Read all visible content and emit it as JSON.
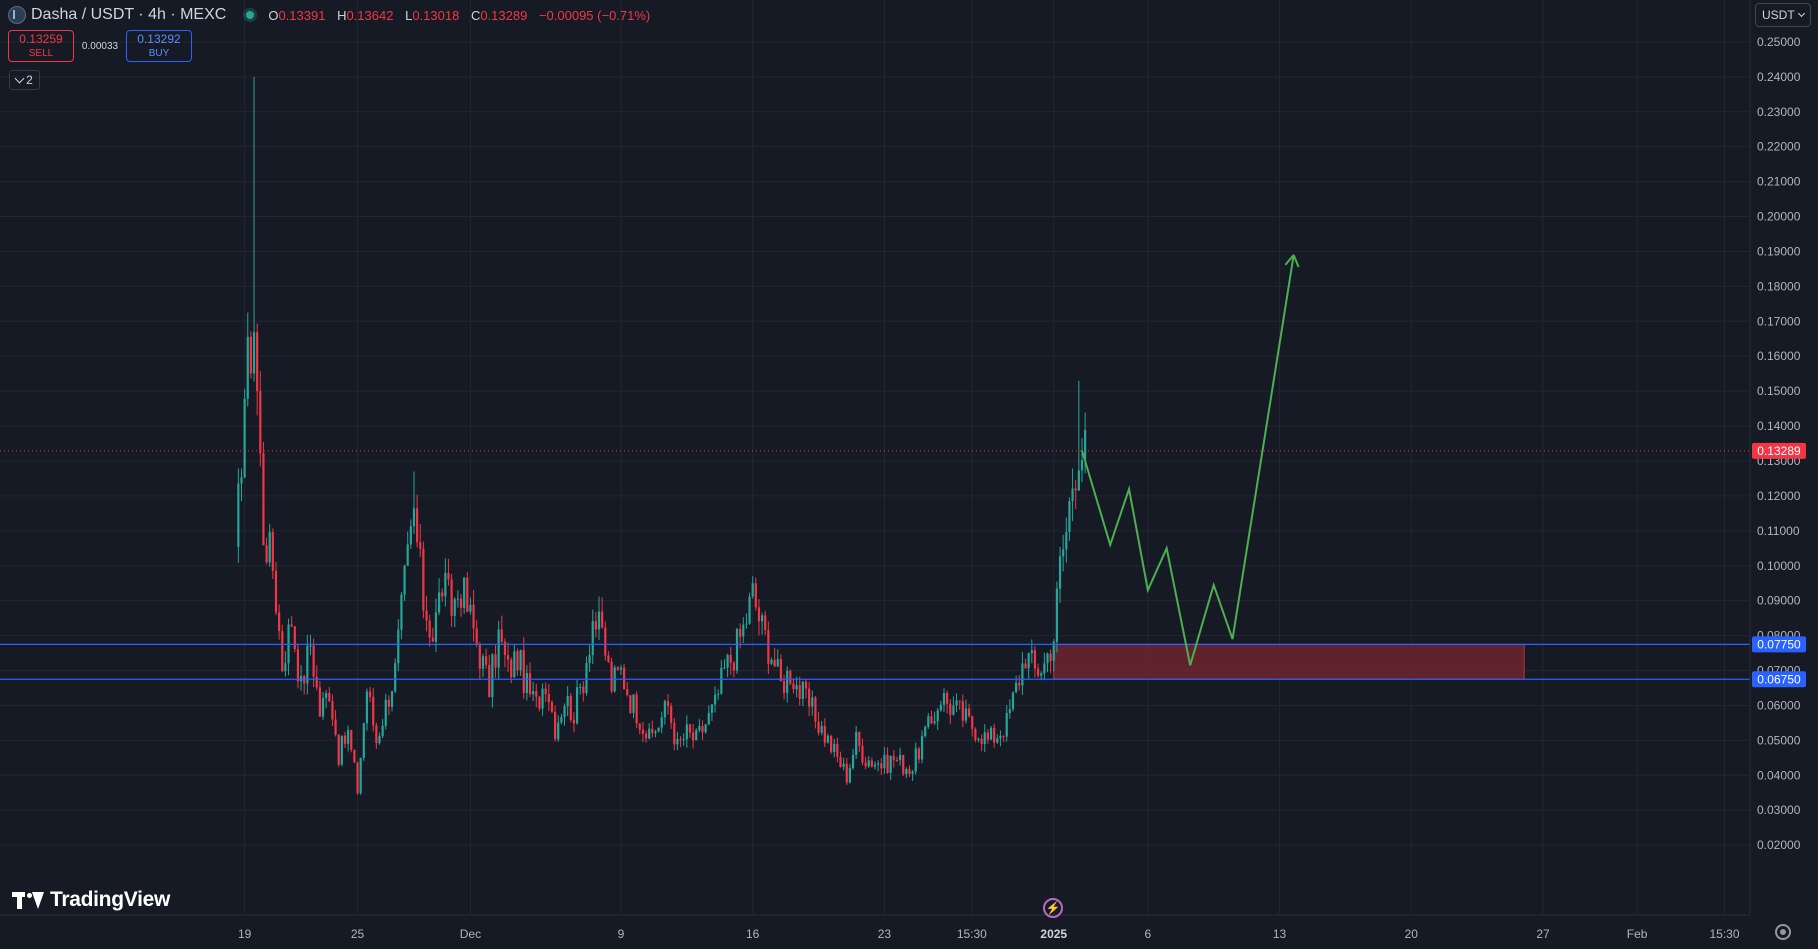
{
  "header": {
    "title": "Dasha / USDT · 4h · MEXC",
    "ohlc": [
      {
        "k": "O",
        "v": "0.13391"
      },
      {
        "k": "H",
        "v": "0.13642"
      },
      {
        "k": "L",
        "v": "0.13018"
      },
      {
        "k": "C",
        "v": "0.13289"
      }
    ],
    "change": "−0.00095 (−0.71%)"
  },
  "trade": {
    "sell_price": "0.13259",
    "sell_label": "SELL",
    "spread": "0.00033",
    "buy_price": "0.13292",
    "buy_label": "BUY"
  },
  "indicators_count": "2",
  "currency": "USDT",
  "brand": "TradingView",
  "colors": {
    "background": "#161a25",
    "grid": "#232632",
    "up": "#26a69a",
    "down": "#f23645",
    "level": "#2962ff",
    "zone": "#7a2630",
    "projection": "#4caf50",
    "axis_text": "#b2b5be"
  },
  "chart_data": {
    "type": "candlestick",
    "interval": "4h",
    "y_axis": {
      "ticks": [
        "0.25000",
        "0.24000",
        "0.23000",
        "0.22000",
        "0.21000",
        "0.20000",
        "0.19000",
        "0.18000",
        "0.17000",
        "0.16000",
        "0.15000",
        "0.14000",
        "0.13000",
        "0.12000",
        "0.11000",
        "0.10000",
        "0.09000",
        "0.08000",
        "0.07000",
        "0.06000",
        "0.05000",
        "0.04000",
        "0.03000",
        "0.02000"
      ],
      "range": [
        0.0,
        0.262
      ]
    },
    "x_axis": {
      "ticks": [
        {
          "label": "19",
          "date": "2024-11-19",
          "bold": false
        },
        {
          "label": "25",
          "date": "2024-11-25",
          "bold": false
        },
        {
          "label": "Dec",
          "date": "2024-12-01",
          "bold": false
        },
        {
          "label": "9",
          "date": "2024-12-09",
          "bold": false
        },
        {
          "label": "16",
          "date": "2024-12-16",
          "bold": false
        },
        {
          "label": "23",
          "date": "2024-12-23",
          "bold": false
        },
        {
          "label": "15:30",
          "date": "2024-12-27T15:30",
          "bold": false
        },
        {
          "label": "2025",
          "date": "2025-01-01",
          "bold": true
        },
        {
          "label": "6",
          "date": "2025-01-06",
          "bold": false
        },
        {
          "label": "13",
          "date": "2025-01-13",
          "bold": false
        },
        {
          "label": "20",
          "date": "2025-01-20",
          "bold": false
        },
        {
          "label": "27",
          "date": "2025-01-27",
          "bold": false
        },
        {
          "label": "Feb",
          "date": "2025-02-01",
          "bold": false
        },
        {
          "label": "15:30",
          "date": "2025-02-05T15:30",
          "bold": false
        }
      ],
      "range": [
        "2024-11-06",
        "2025-02-07"
      ]
    },
    "price_points": [
      [
        "2024-11-18T12:00",
        0.1
      ],
      [
        "2024-11-19T00:00",
        0.15
      ],
      [
        "2024-11-19T12:00",
        0.17
      ],
      [
        "2024-11-20T00:00",
        0.11
      ],
      [
        "2024-11-20T12:00",
        0.1
      ],
      [
        "2024-11-21T00:00",
        0.072
      ],
      [
        "2024-11-21T12:00",
        0.085
      ],
      [
        "2024-11-22T00:00",
        0.065
      ],
      [
        "2024-11-22T12:00",
        0.078
      ],
      [
        "2024-11-23T00:00",
        0.058
      ],
      [
        "2024-11-23T12:00",
        0.065
      ],
      [
        "2024-11-24T00:00",
        0.046
      ],
      [
        "2024-11-24T12:00",
        0.052
      ],
      [
        "2024-11-25T00:00",
        0.036
      ],
      [
        "2024-11-25T12:00",
        0.065
      ],
      [
        "2024-11-26T00:00",
        0.05
      ],
      [
        "2024-11-26T12:00",
        0.06
      ],
      [
        "2024-11-27T00:00",
        0.07
      ],
      [
        "2024-11-27T12:00",
        0.095
      ],
      [
        "2024-11-28T00:00",
        0.115
      ],
      [
        "2024-11-28T12:00",
        0.09
      ],
      [
        "2024-11-29T00:00",
        0.08
      ],
      [
        "2024-11-29T12:00",
        0.095
      ],
      [
        "2024-11-30T00:00",
        0.088
      ],
      [
        "2024-11-30T12:00",
        0.094
      ],
      [
        "2024-12-01T00:00",
        0.085
      ],
      [
        "2024-12-01T12:00",
        0.075
      ],
      [
        "2024-12-02T00:00",
        0.065
      ],
      [
        "2024-12-02T12:00",
        0.08
      ],
      [
        "2024-12-03T00:00",
        0.07
      ],
      [
        "2024-12-03T12:00",
        0.074
      ],
      [
        "2024-12-04T00:00",
        0.065
      ],
      [
        "2024-12-04T12:00",
        0.06
      ],
      [
        "2024-12-05T00:00",
        0.068
      ],
      [
        "2024-12-05T12:00",
        0.054
      ],
      [
        "2024-12-06T00:00",
        0.062
      ],
      [
        "2024-12-06T12:00",
        0.058
      ],
      [
        "2024-12-07T00:00",
        0.068
      ],
      [
        "2024-12-07T12:00",
        0.085
      ],
      [
        "2024-12-08T00:00",
        0.08
      ],
      [
        "2024-12-08T12:00",
        0.066
      ],
      [
        "2024-12-09T00:00",
        0.07
      ],
      [
        "2024-12-09T12:00",
        0.062
      ],
      [
        "2024-12-10T00:00",
        0.057
      ],
      [
        "2024-12-10T12:00",
        0.05
      ],
      [
        "2024-12-11T00:00",
        0.055
      ],
      [
        "2024-12-11T12:00",
        0.06
      ],
      [
        "2024-12-12T00:00",
        0.048
      ],
      [
        "2024-12-12T12:00",
        0.052
      ],
      [
        "2024-12-13T00:00",
        0.05
      ],
      [
        "2024-12-13T12:00",
        0.055
      ],
      [
        "2024-12-14T00:00",
        0.06
      ],
      [
        "2024-12-14T12:00",
        0.07
      ],
      [
        "2024-12-15T00:00",
        0.075
      ],
      [
        "2024-12-15T12:00",
        0.082
      ],
      [
        "2024-12-16T00:00",
        0.092
      ],
      [
        "2024-12-16T12:00",
        0.082
      ],
      [
        "2024-12-17T00:00",
        0.075
      ],
      [
        "2024-12-17T12:00",
        0.066
      ],
      [
        "2024-12-18T00:00",
        0.07
      ],
      [
        "2024-12-18T12:00",
        0.064
      ],
      [
        "2024-12-19T00:00",
        0.06
      ],
      [
        "2024-12-19T12:00",
        0.055
      ],
      [
        "2024-12-20T00:00",
        0.05
      ],
      [
        "2024-12-20T12:00",
        0.045
      ],
      [
        "2024-12-21T00:00",
        0.04
      ],
      [
        "2024-12-21T12:00",
        0.05
      ],
      [
        "2024-12-22T00:00",
        0.045
      ],
      [
        "2024-12-22T12:00",
        0.044
      ],
      [
        "2024-12-23T00:00",
        0.043
      ],
      [
        "2024-12-23T12:00",
        0.045
      ],
      [
        "2024-12-24T00:00",
        0.043
      ],
      [
        "2024-12-24T12:00",
        0.042
      ],
      [
        "2024-12-25T00:00",
        0.05
      ],
      [
        "2024-12-25T12:00",
        0.055
      ],
      [
        "2024-12-26T00:00",
        0.063
      ],
      [
        "2024-12-26T12:00",
        0.06
      ],
      [
        "2024-12-27T00:00",
        0.058
      ],
      [
        "2024-12-27T12:00",
        0.055
      ],
      [
        "2024-12-28T00:00",
        0.053
      ],
      [
        "2024-12-28T12:00",
        0.05
      ],
      [
        "2024-12-29T00:00",
        0.052
      ],
      [
        "2024-12-29T12:00",
        0.055
      ],
      [
        "2024-12-30T00:00",
        0.065
      ],
      [
        "2024-12-30T12:00",
        0.075
      ],
      [
        "2024-12-31T00:00",
        0.07
      ],
      [
        "2024-12-31T12:00",
        0.072
      ],
      [
        "2025-01-01T00:00",
        0.08
      ],
      [
        "2025-01-01T08:00",
        0.1
      ],
      [
        "2025-01-01T16:00",
        0.11
      ],
      [
        "2025-01-02T00:00",
        0.125
      ],
      [
        "2025-01-02T08:00",
        0.135
      ],
      [
        "2025-01-02T16:00",
        0.132
      ]
    ],
    "spikes": [
      {
        "date": "2024-11-19T12:00",
        "high": 0.24
      },
      {
        "date": "2024-11-28T00:00",
        "high": 0.127
      },
      {
        "date": "2024-12-16T00:00",
        "high": 0.097
      },
      {
        "date": "2025-01-02T08:00",
        "high": 0.153
      }
    ],
    "levels": [
      {
        "value": 0.0775,
        "label": "0.07750"
      },
      {
        "value": 0.0675,
        "label": "0.06750"
      }
    ],
    "zone": {
      "start": "2025-01-01",
      "end": "2025-01-26",
      "top": 0.0775,
      "bottom": 0.0675
    },
    "last_price": {
      "value": 0.13289,
      "label": "0.13289"
    },
    "projection": [
      [
        "2025-01-02T12:00",
        0.133
      ],
      [
        "2025-01-04T00:00",
        0.106
      ],
      [
        "2025-01-05T00:00",
        0.122
      ],
      [
        "2025-01-06T00:00",
        0.093
      ],
      [
        "2025-01-07T00:00",
        0.105
      ],
      [
        "2025-01-08T06:00",
        0.0715
      ],
      [
        "2025-01-09T12:00",
        0.0945
      ],
      [
        "2025-01-10T12:00",
        0.079
      ],
      [
        "2025-01-13T18:00",
        0.189
      ]
    ]
  }
}
